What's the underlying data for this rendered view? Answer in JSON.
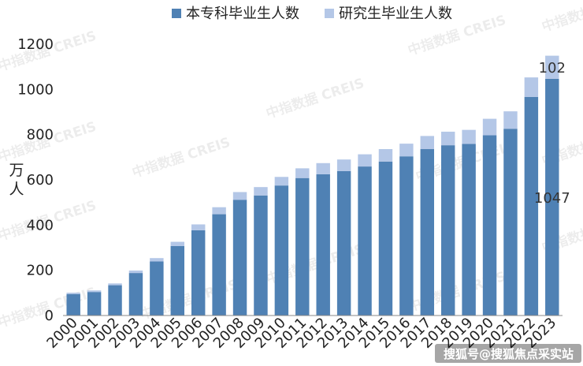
{
  "chart_data": {
    "type": "bar",
    "stacked": true,
    "categories": [
      "2000",
      "2001",
      "2002",
      "2003",
      "2004",
      "2005",
      "2006",
      "2007",
      "2008",
      "2009",
      "2010",
      "2011",
      "2012",
      "2013",
      "2014",
      "2015",
      "2016",
      "2017",
      "2018",
      "2019",
      "2020",
      "2021",
      "2022",
      "2023"
    ],
    "series": [
      {
        "name": "本专科毕业生人数",
        "color": "#4f81b4",
        "values": [
          95,
          104,
          134,
          188,
          239,
          307,
          377,
          448,
          512,
          531,
          575,
          608,
          625,
          639,
          659,
          681,
          704,
          736,
          753,
          759,
          797,
          826,
          967,
          1047
        ]
      },
      {
        "name": "研究生毕业生人数",
        "color": "#b4c7e7",
        "values": [
          6,
          7,
          8,
          11,
          15,
          19,
          26,
          31,
          34,
          37,
          38,
          43,
          49,
          51,
          54,
          55,
          56,
          58,
          60,
          62,
          73,
          77,
          86,
          102
        ]
      }
    ],
    "ylabel": "万人",
    "ylim": [
      0,
      1200
    ],
    "yticks": [
      0,
      200,
      400,
      600,
      800,
      1000,
      1200
    ],
    "grid": false,
    "legend_position": "top",
    "annotations": [
      "102",
      "1047"
    ],
    "watermark": "中指数据 CREIS",
    "footer_watermark": "搜狐号@搜狐焦点采实站"
  }
}
